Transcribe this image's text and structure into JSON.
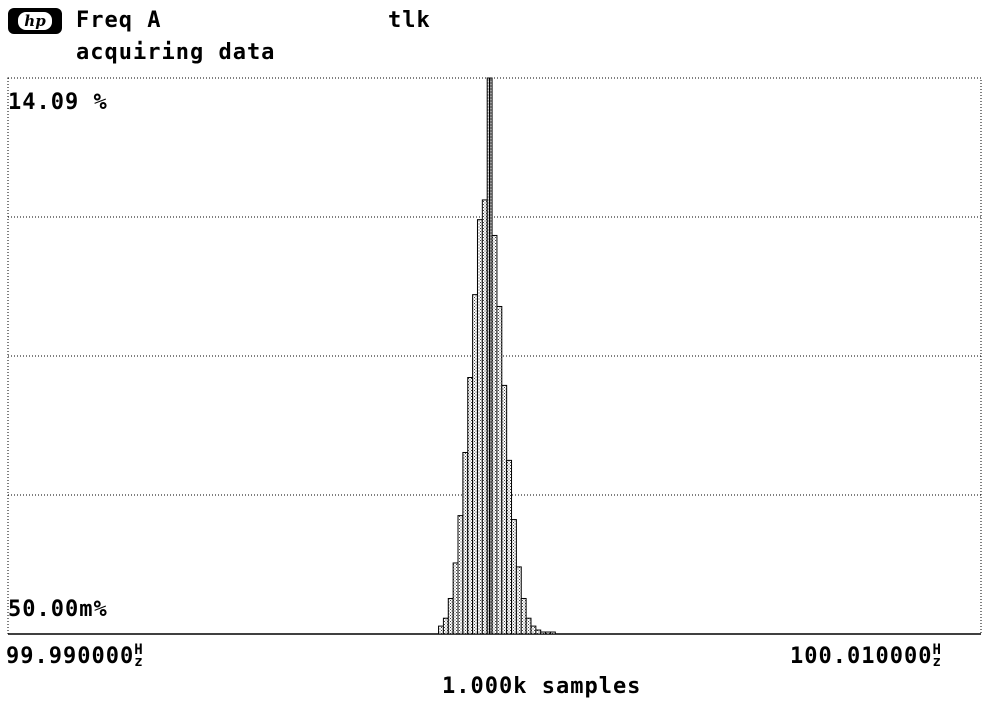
{
  "header": {
    "measurement": "Freq A",
    "status_right": "tlk",
    "status_line": "acquiring data"
  },
  "axis": {
    "y_top_label": "14.09 %",
    "y_bottom_label": "50.00m%",
    "x_left_value": "99.990000",
    "x_right_value": "100.010000",
    "x_unit_top": "H",
    "x_unit_bottom": "z",
    "samples_label": "1.000k samples"
  },
  "chart_data": {
    "type": "bar",
    "title": "Freq A",
    "xlabel": "",
    "ylabel": "",
    "x_unit": "Hz",
    "xlim": [
      99.99,
      100.01
    ],
    "ylim_percent": [
      0.05,
      14.09
    ],
    "samples": 1000,
    "grid": true,
    "legend": "none",
    "bins_x": [
      99.9989,
      99.999,
      99.9991,
      99.9992,
      99.9993,
      99.9994,
      99.9995,
      99.9996,
      99.9997,
      99.9998,
      99.9999,
      100.0,
      100.0001,
      100.0002,
      100.0003,
      100.0004,
      100.0005,
      100.0006,
      100.0007,
      100.0008,
      100.0009,
      100.001,
      100.0011,
      100.0012
    ],
    "bins_percent": [
      0.2,
      0.4,
      0.9,
      1.8,
      3.0,
      4.6,
      6.5,
      8.6,
      10.5,
      11.0,
      14.09,
      10.1,
      8.3,
      6.3,
      4.4,
      2.9,
      1.7,
      0.9,
      0.4,
      0.2,
      0.1,
      0.05,
      0.05,
      0.05
    ]
  }
}
